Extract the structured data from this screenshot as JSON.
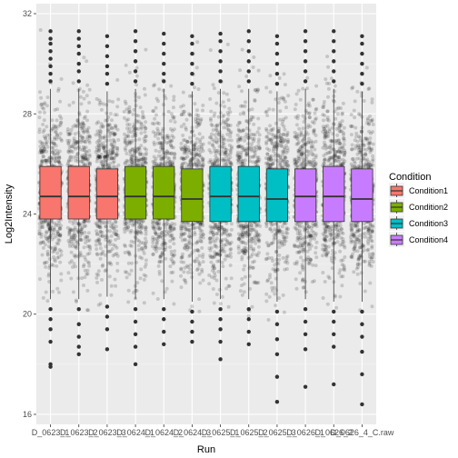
{
  "chart_data": {
    "type": "boxplot",
    "title": "",
    "xlabel": "Run",
    "ylabel": "Log2Intensity",
    "ylim": [
      15.6,
      32.4
    ],
    "yticks": [
      16,
      20,
      24,
      28,
      32
    ],
    "grid": true,
    "jitter_points": true,
    "legend_title": "Condition",
    "legend_position": "right",
    "conditions": [
      {
        "name": "Condition1",
        "color": "#F8766D"
      },
      {
        "name": "Condition2",
        "color": "#7CAE00"
      },
      {
        "name": "Condition3",
        "color": "#00BFC4"
      },
      {
        "name": "Condition4",
        "color": "#C77CFF"
      }
    ],
    "runs": [
      {
        "label": "D_0623_1",
        "condition": 0,
        "q1": 23.8,
        "median": 24.7,
        "q3": 25.9,
        "whisker_low": 20.6,
        "whisker_high": 29.0,
        "outliers_low": [
          20.2,
          19.8,
          19.4,
          18.9,
          18.0,
          17.9
        ],
        "outliers_high": [
          29.3,
          29.6,
          29.9,
          30.2,
          30.5,
          30.8,
          31.0,
          31.3
        ]
      },
      {
        "label": "D_0623_2",
        "condition": 0,
        "q1": 23.8,
        "median": 24.7,
        "q3": 25.9,
        "whisker_low": 20.6,
        "whisker_high": 29.0,
        "outliers_low": [
          20.2,
          19.6,
          19.1,
          18.7,
          18.4
        ],
        "outliers_high": [
          29.3,
          29.7,
          30.0,
          30.4,
          30.7,
          31.0,
          31.3
        ]
      },
      {
        "label": "D_0623_3",
        "condition": 0,
        "q1": 23.8,
        "median": 24.7,
        "q3": 25.8,
        "whisker_low": 20.7,
        "whisker_high": 28.9,
        "outliers_low": [
          20.3,
          19.9,
          19.4,
          18.6
        ],
        "outliers_high": [
          29.2,
          29.6,
          29.9,
          30.3,
          30.7,
          31.1
        ]
      },
      {
        "label": "D_0624_1",
        "condition": 1,
        "q1": 23.8,
        "median": 24.7,
        "q3": 25.9,
        "whisker_low": 20.6,
        "whisker_high": 29.0,
        "outliers_low": [
          20.2,
          19.7,
          19.2,
          18.7,
          18.0
        ],
        "outliers_high": [
          29.3,
          29.7,
          30.1,
          30.5,
          30.9,
          31.3
        ]
      },
      {
        "label": "D_0624_2",
        "condition": 1,
        "q1": 23.8,
        "median": 24.7,
        "q3": 25.9,
        "whisker_low": 20.6,
        "whisker_high": 29.0,
        "outliers_low": [
          20.2,
          19.8,
          19.3,
          18.8
        ],
        "outliers_high": [
          29.3,
          29.6,
          30.0,
          30.4,
          30.8,
          31.2
        ]
      },
      {
        "label": "D_0624_3",
        "condition": 1,
        "q1": 23.7,
        "median": 24.6,
        "q3": 25.8,
        "whisker_low": 20.5,
        "whisker_high": 28.9,
        "outliers_low": [
          20.1,
          19.7,
          19.3,
          18.9
        ],
        "outliers_high": [
          29.2,
          29.6,
          30.0,
          30.4,
          30.8,
          31.1
        ]
      },
      {
        "label": "D_0625_1",
        "condition": 2,
        "q1": 23.7,
        "median": 24.7,
        "q3": 25.9,
        "whisker_low": 20.6,
        "whisker_high": 29.0,
        "outliers_low": [
          20.2,
          19.8,
          19.4,
          18.9,
          18.2
        ],
        "outliers_high": [
          29.3,
          29.7,
          30.1,
          30.5,
          30.9,
          31.2
        ]
      },
      {
        "label": "D_0625_2",
        "condition": 2,
        "q1": 23.7,
        "median": 24.7,
        "q3": 25.9,
        "whisker_low": 20.6,
        "whisker_high": 29.0,
        "outliers_low": [
          20.2,
          19.8,
          19.3,
          18.8
        ],
        "outliers_high": [
          29.3,
          29.7,
          30.1,
          30.5,
          30.9,
          31.3
        ]
      },
      {
        "label": "D_0625_3",
        "condition": 2,
        "q1": 23.7,
        "median": 24.6,
        "q3": 25.8,
        "whisker_low": 20.5,
        "whisker_high": 28.9,
        "outliers_low": [
          20.1,
          19.6,
          19.0,
          18.4,
          17.5,
          16.5
        ],
        "outliers_high": [
          29.2,
          29.6,
          30.0,
          30.4,
          30.8,
          31.1
        ]
      },
      {
        "label": "D_0626_1",
        "condition": 3,
        "q1": 23.7,
        "median": 24.7,
        "q3": 25.8,
        "whisker_low": 20.6,
        "whisker_high": 29.0,
        "outliers_low": [
          20.2,
          19.7,
          19.2,
          18.6,
          17.1
        ],
        "outliers_high": [
          29.3,
          29.7,
          30.1,
          30.5,
          30.9,
          31.3
        ]
      },
      {
        "label": "D_0626_2",
        "condition": 3,
        "q1": 23.7,
        "median": 24.7,
        "q3": 25.9,
        "whisker_low": 20.5,
        "whisker_high": 29.0,
        "outliers_low": [
          20.1,
          19.7,
          19.2,
          18.7,
          17.2
        ],
        "outliers_high": [
          29.3,
          29.7,
          30.1,
          30.5,
          30.9,
          31.3
        ]
      },
      {
        "label": "D_0626_4_C.raw",
        "condition": 3,
        "q1": 23.7,
        "median": 24.6,
        "q3": 25.8,
        "whisker_low": 20.5,
        "whisker_high": 28.9,
        "outliers_low": [
          20.1,
          19.6,
          19.1,
          18.5,
          17.6,
          16.4
        ],
        "outliers_high": [
          29.2,
          29.6,
          30.0,
          30.4,
          30.8,
          31.1
        ]
      }
    ]
  }
}
